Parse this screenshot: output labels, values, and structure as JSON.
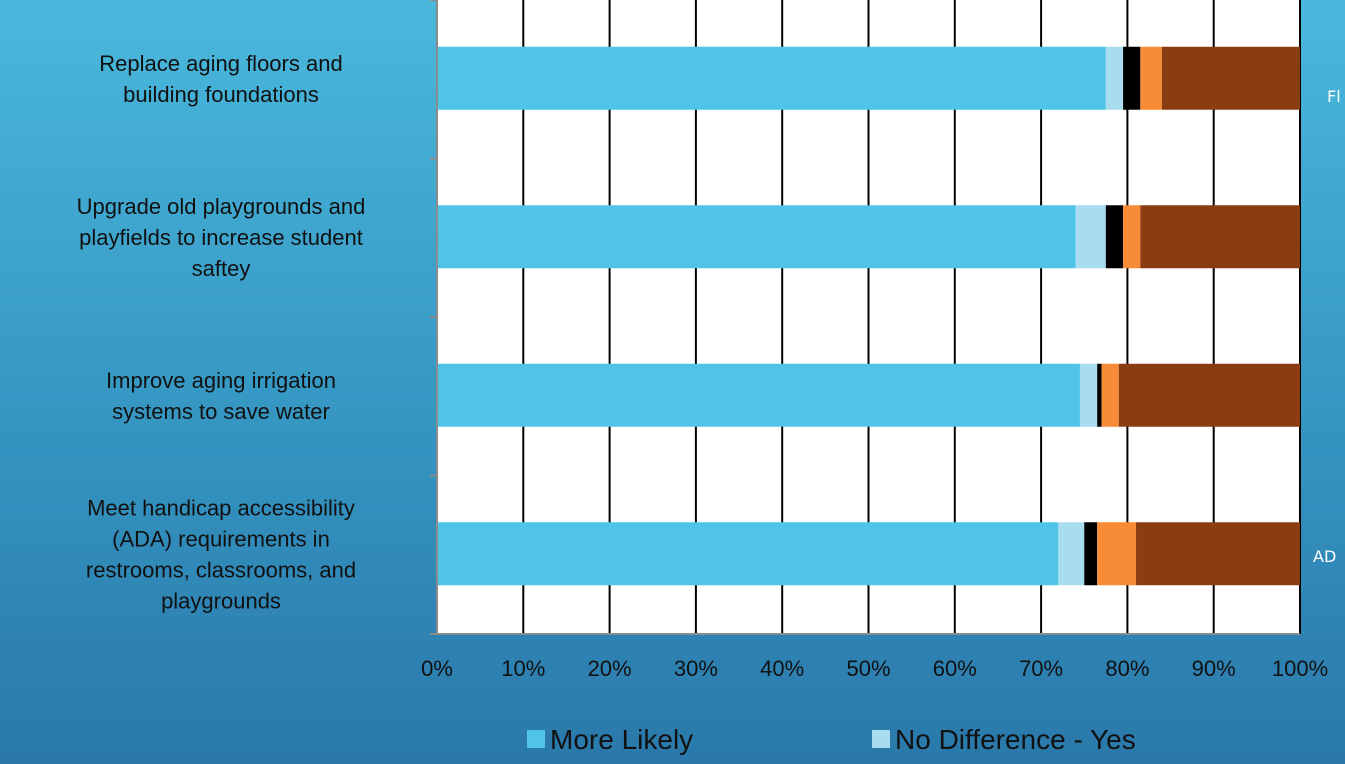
{
  "chart_data": {
    "type": "bar",
    "orientation": "horizontal",
    "stacked": true,
    "categories": [
      "Replace aging floors and building foundations",
      "Upgrade old playgrounds and playfields to increase student saftey",
      "Improve aging irrigation systems to save water",
      "Meet handicap accessibility (ADA) requirements in restrooms, classrooms, and playgrounds"
    ],
    "category_lines": [
      [
        "Replace aging floors and",
        "building foundations"
      ],
      [
        "Upgrade old playgrounds and",
        "playfields to increase student",
        "saftey"
      ],
      [
        "Improve aging irrigation",
        "systems to save water"
      ],
      [
        "Meet handicap accessibility",
        "(ADA) requirements in",
        "restrooms, classrooms, and",
        "playgrounds"
      ]
    ],
    "series": [
      {
        "name": "More Likely",
        "color": "#4fc4e6",
        "values": [
          77.5,
          74,
          74.5,
          72
        ]
      },
      {
        "name": "No Difference - Yes",
        "color": "#a9dcef",
        "values": [
          2,
          3.5,
          2,
          3
        ]
      },
      {
        "color": "#000000",
        "values": [
          2,
          2,
          0.5,
          1.5
        ]
      },
      {
        "color": "#f88b36",
        "values": [
          2.5,
          2,
          2,
          4.5
        ]
      },
      {
        "color": "#8a3d10",
        "values": [
          16,
          18.5,
          21,
          19
        ]
      }
    ],
    "xlim": [
      0,
      100
    ],
    "x_ticks": [
      "0%",
      "10%",
      "20%",
      "30%",
      "40%",
      "50%",
      "60%",
      "70%",
      "80%",
      "90%",
      "100%"
    ],
    "grid": true,
    "legend_position": "bottom",
    "xlabel": "",
    "ylabel": ""
  },
  "side_labels": [
    "Fl",
    "AD"
  ],
  "colors": {
    "plot_background": "#ffffff",
    "grid": "#000000"
  }
}
